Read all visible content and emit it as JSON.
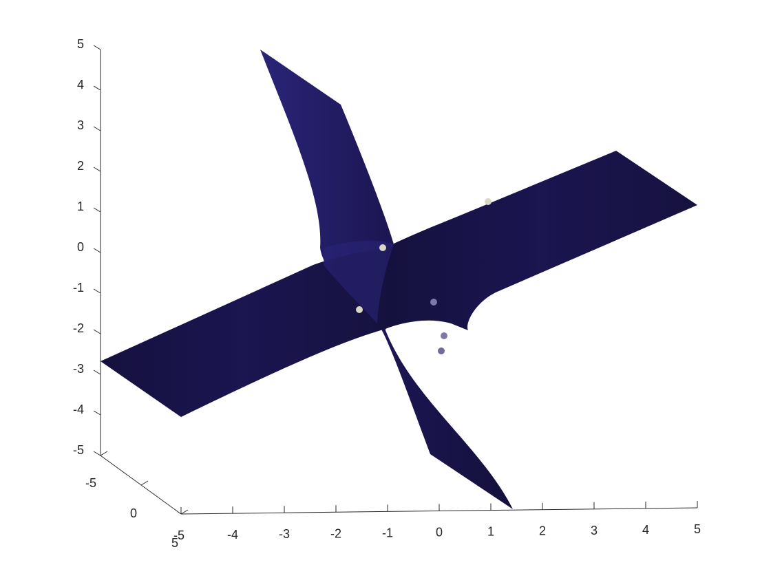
{
  "chart_data": {
    "type": "surface",
    "title": "",
    "xlabel": "",
    "ylabel": "",
    "zlabel": "",
    "xlim": [
      -5,
      5
    ],
    "ylim": [
      -5,
      5
    ],
    "zlim": [
      -5,
      5
    ],
    "x_ticks": [
      "-5",
      "-4",
      "-3",
      "-2",
      "-1",
      "0",
      "1",
      "2",
      "3",
      "4",
      "5"
    ],
    "y_ticks": [
      "-5",
      "0",
      "5"
    ],
    "z_ticks": [
      "5",
      "4",
      "3",
      "2",
      "1",
      "0",
      "-1",
      "-2",
      "-3",
      "-4",
      "-5"
    ],
    "grid": false,
    "surface_color": "#1b1550",
    "surface_highlight": "#2a2478",
    "point_color": "#d9d8c4",
    "points": [
      {
        "x": -1.0,
        "y": 0.3,
        "z": 0.0
      },
      {
        "x": -1.6,
        "y": 0.5,
        "z": -1.5
      },
      {
        "x": 0.9,
        "y": -0.4,
        "z": 1.2
      },
      {
        "x": -0.1,
        "y": -0.2,
        "z": -1.3
      },
      {
        "x": 0.05,
        "y": -0.1,
        "z": -2.1
      },
      {
        "x": 0.0,
        "y": -0.05,
        "z": -2.5
      }
    ]
  }
}
